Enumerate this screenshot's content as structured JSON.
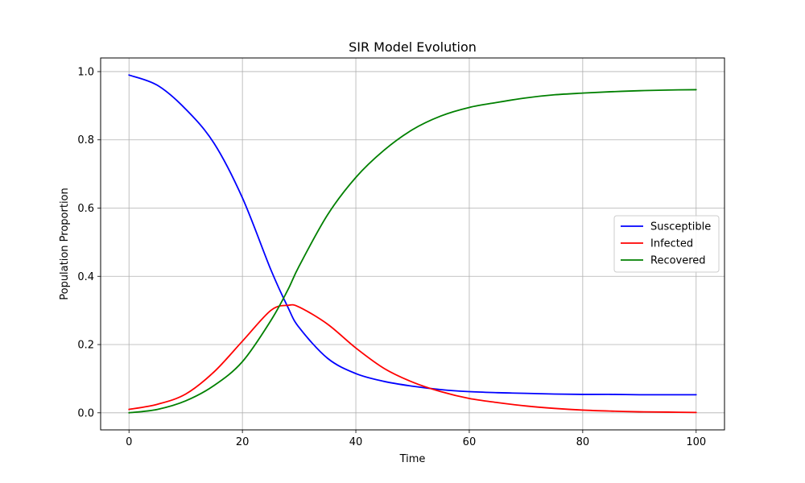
{
  "chart_data": {
    "type": "line",
    "title": "SIR Model Evolution",
    "xlabel": "Time",
    "ylabel": "Population Proportion",
    "xlim": [
      -5,
      105
    ],
    "ylim": [
      -0.05,
      1.04
    ],
    "xticks": [
      0,
      20,
      40,
      60,
      80,
      100
    ],
    "xtick_labels": [
      "0",
      "20",
      "40",
      "60",
      "80",
      "100"
    ],
    "yticks": [
      0.0,
      0.2,
      0.4,
      0.6,
      0.8,
      1.0
    ],
    "ytick_labels": [
      "0.0",
      "0.2",
      "0.4",
      "0.6",
      "0.8",
      "1.0"
    ],
    "grid": true,
    "legend_position": "center-right",
    "x": [
      0,
      5,
      10,
      15,
      20,
      25,
      28,
      30,
      35,
      40,
      45,
      50,
      55,
      60,
      65,
      70,
      75,
      80,
      85,
      90,
      95,
      100
    ],
    "series": [
      {
        "name": "Susceptible",
        "color": "#0000ff",
        "values": [
          0.99,
          0.96,
          0.89,
          0.79,
          0.63,
          0.42,
          0.31,
          0.25,
          0.16,
          0.115,
          0.092,
          0.078,
          0.068,
          0.062,
          0.059,
          0.057,
          0.055,
          0.054,
          0.054,
          0.053,
          0.053,
          0.053
        ]
      },
      {
        "name": "Infected",
        "color": "#ff0000",
        "values": [
          0.01,
          0.025,
          0.055,
          0.12,
          0.21,
          0.3,
          0.315,
          0.31,
          0.26,
          0.19,
          0.13,
          0.09,
          0.062,
          0.042,
          0.03,
          0.02,
          0.013,
          0.008,
          0.005,
          0.003,
          0.002,
          0.001
        ]
      },
      {
        "name": "Recovered",
        "color": "#008000",
        "values": [
          0.0,
          0.01,
          0.035,
          0.08,
          0.15,
          0.27,
          0.36,
          0.43,
          0.58,
          0.69,
          0.77,
          0.83,
          0.87,
          0.895,
          0.91,
          0.923,
          0.932,
          0.937,
          0.941,
          0.944,
          0.946,
          0.947
        ]
      }
    ]
  }
}
